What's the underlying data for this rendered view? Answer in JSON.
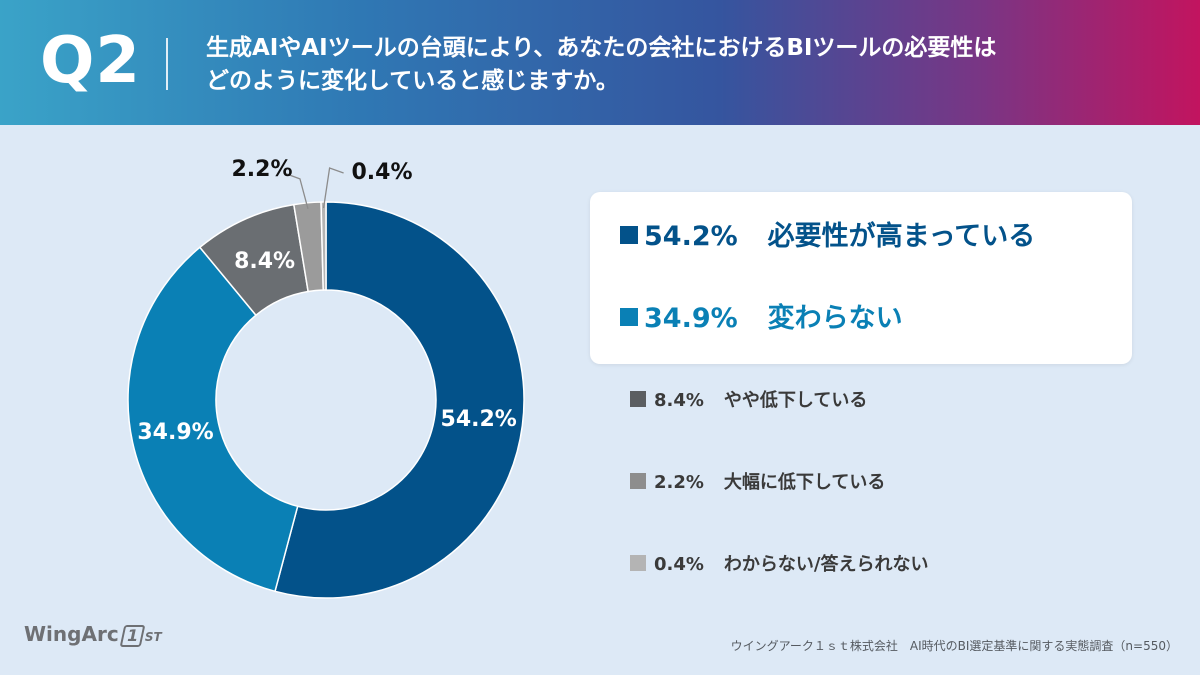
{
  "header": {
    "question": "Q2",
    "title_line1": "生成AIやAIツールの台頭により、あなたの会社におけるBIツールの必要性は",
    "title_line2": "どのように変化していると感じますか。"
  },
  "colors": {
    "header_gradient": [
      "#3aa3c8",
      "#2f78b4",
      "#35559f",
      "#7a3584",
      "#c2145f"
    ],
    "background": "#dde9f6"
  },
  "chart_data": {
    "type": "pie",
    "donut": true,
    "start": "top",
    "direction": "clockwise",
    "categories": [
      "必要性が高まっている",
      "変わらない",
      "やや低下している",
      "大幅に低下している",
      "わからない/答えられない"
    ],
    "values": [
      54.2,
      34.9,
      8.4,
      2.2,
      0.4
    ],
    "value_labels": [
      "54.2%",
      "34.9%",
      "8.4%",
      "2.2%",
      "0.4%"
    ],
    "colors": [
      "#03528a",
      "#0a80b5",
      "#6a6e72",
      "#9b9b9b",
      "#b4b4b4"
    ],
    "label_colors": [
      "#ffffff",
      "#ffffff",
      "#ffffff",
      "#111111",
      "#111111"
    ],
    "unit": "%"
  },
  "legend": {
    "highlight": [
      {
        "pct": "54.2%",
        "label": "必要性が高まっている",
        "color": "#03528a"
      },
      {
        "pct": "34.9%",
        "label": "変わらない",
        "color": "#0a80b5"
      }
    ],
    "rest": [
      {
        "pct": "8.4%",
        "label": "やや低下している",
        "color": "#5b5e61"
      },
      {
        "pct": "2.2%",
        "label": "大幅に低下している",
        "color": "#8d8d8d"
      },
      {
        "pct": "0.4%",
        "label": "わからない/答えられない",
        "color": "#b4b4b4"
      }
    ]
  },
  "logo": {
    "text": "WingArc",
    "mark": "1",
    "suffix": "ST"
  },
  "footer": {
    "text": "ウイングアーク１ｓｔ株式会社　AI時代のBI選定基準に関する実態調査（n=550）"
  }
}
